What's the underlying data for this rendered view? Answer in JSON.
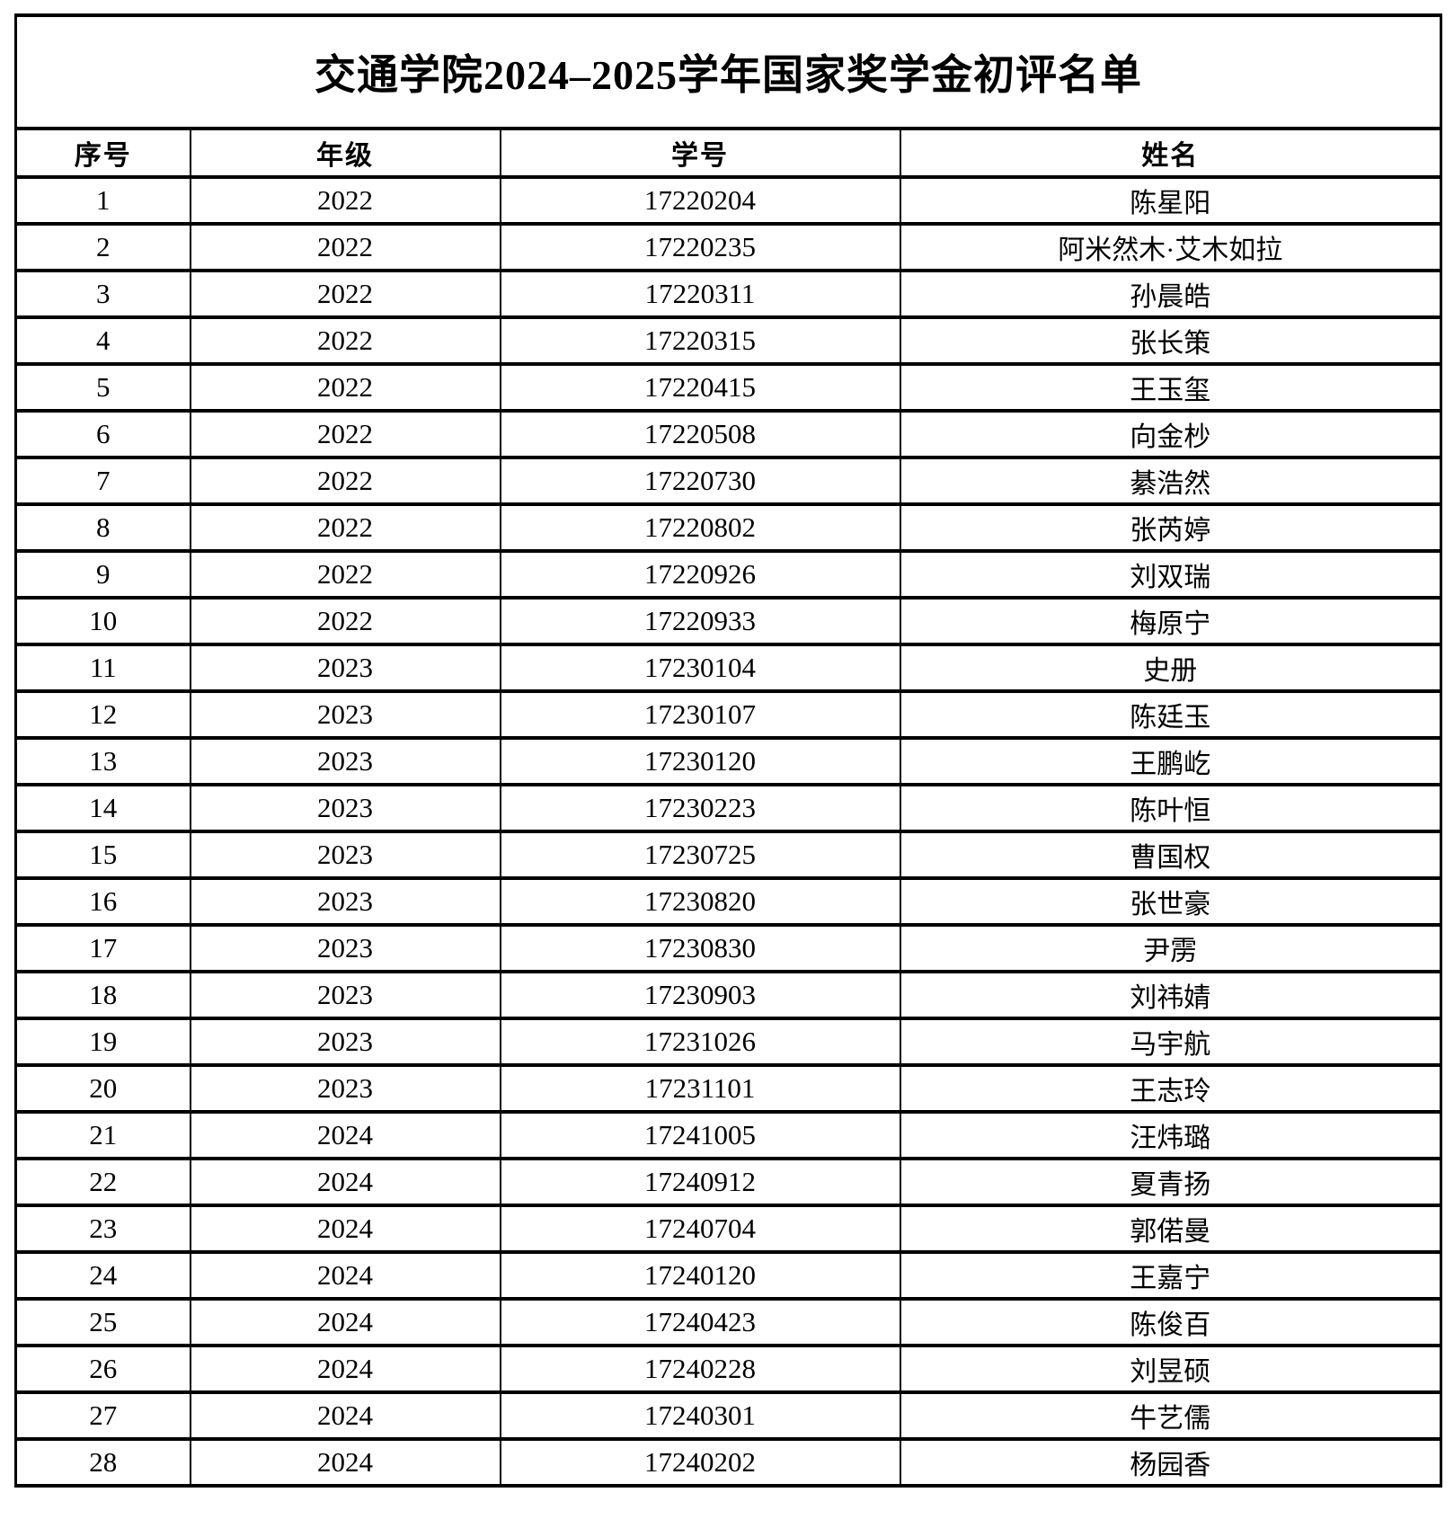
{
  "table": {
    "title": "交通学院2024–2025学年国家奖学金初评名单",
    "columns": [
      "序号",
      "年级",
      "学号",
      "姓名"
    ],
    "rows": [
      [
        "1",
        "2022",
        "17220204",
        "陈星阳"
      ],
      [
        "2",
        "2022",
        "17220235",
        "阿米然木·艾木如拉"
      ],
      [
        "3",
        "2022",
        "17220311",
        "孙晨皓"
      ],
      [
        "4",
        "2022",
        "17220315",
        "张长策"
      ],
      [
        "5",
        "2022",
        "17220415",
        "王玉玺"
      ],
      [
        "6",
        "2022",
        "17220508",
        "向金杪"
      ],
      [
        "7",
        "2022",
        "17220730",
        "綦浩然"
      ],
      [
        "8",
        "2022",
        "17220802",
        "张芮婷"
      ],
      [
        "9",
        "2022",
        "17220926",
        "刘双瑞"
      ],
      [
        "10",
        "2022",
        "17220933",
        "梅原宁"
      ],
      [
        "11",
        "2023",
        "17230104",
        "史册"
      ],
      [
        "12",
        "2023",
        "17230107",
        "陈廷玉"
      ],
      [
        "13",
        "2023",
        "17230120",
        "王鹏屹"
      ],
      [
        "14",
        "2023",
        "17230223",
        "陈叶恒"
      ],
      [
        "15",
        "2023",
        "17230725",
        "曹国权"
      ],
      [
        "16",
        "2023",
        "17230820",
        "张世豪"
      ],
      [
        "17",
        "2023",
        "17230830",
        "尹雳"
      ],
      [
        "18",
        "2023",
        "17230903",
        "刘祎婧"
      ],
      [
        "19",
        "2023",
        "17231026",
        "马宇航"
      ],
      [
        "20",
        "2023",
        "17231101",
        "王志玲"
      ],
      [
        "21",
        "2024",
        "17241005",
        "汪炜璐"
      ],
      [
        "22",
        "2024",
        "17240912",
        "夏青扬"
      ],
      [
        "23",
        "2024",
        "17240704",
        "郭偌曼"
      ],
      [
        "24",
        "2024",
        "17240120",
        "王嘉宁"
      ],
      [
        "25",
        "2024",
        "17240423",
        "陈俊百"
      ],
      [
        "26",
        "2024",
        "17240228",
        "刘昱硕"
      ],
      [
        "27",
        "2024",
        "17240301",
        "牛艺儒"
      ],
      [
        "28",
        "2024",
        "17240202",
        "杨园香"
      ]
    ],
    "border_color": "#000000",
    "background_color": "#ffffff"
  }
}
